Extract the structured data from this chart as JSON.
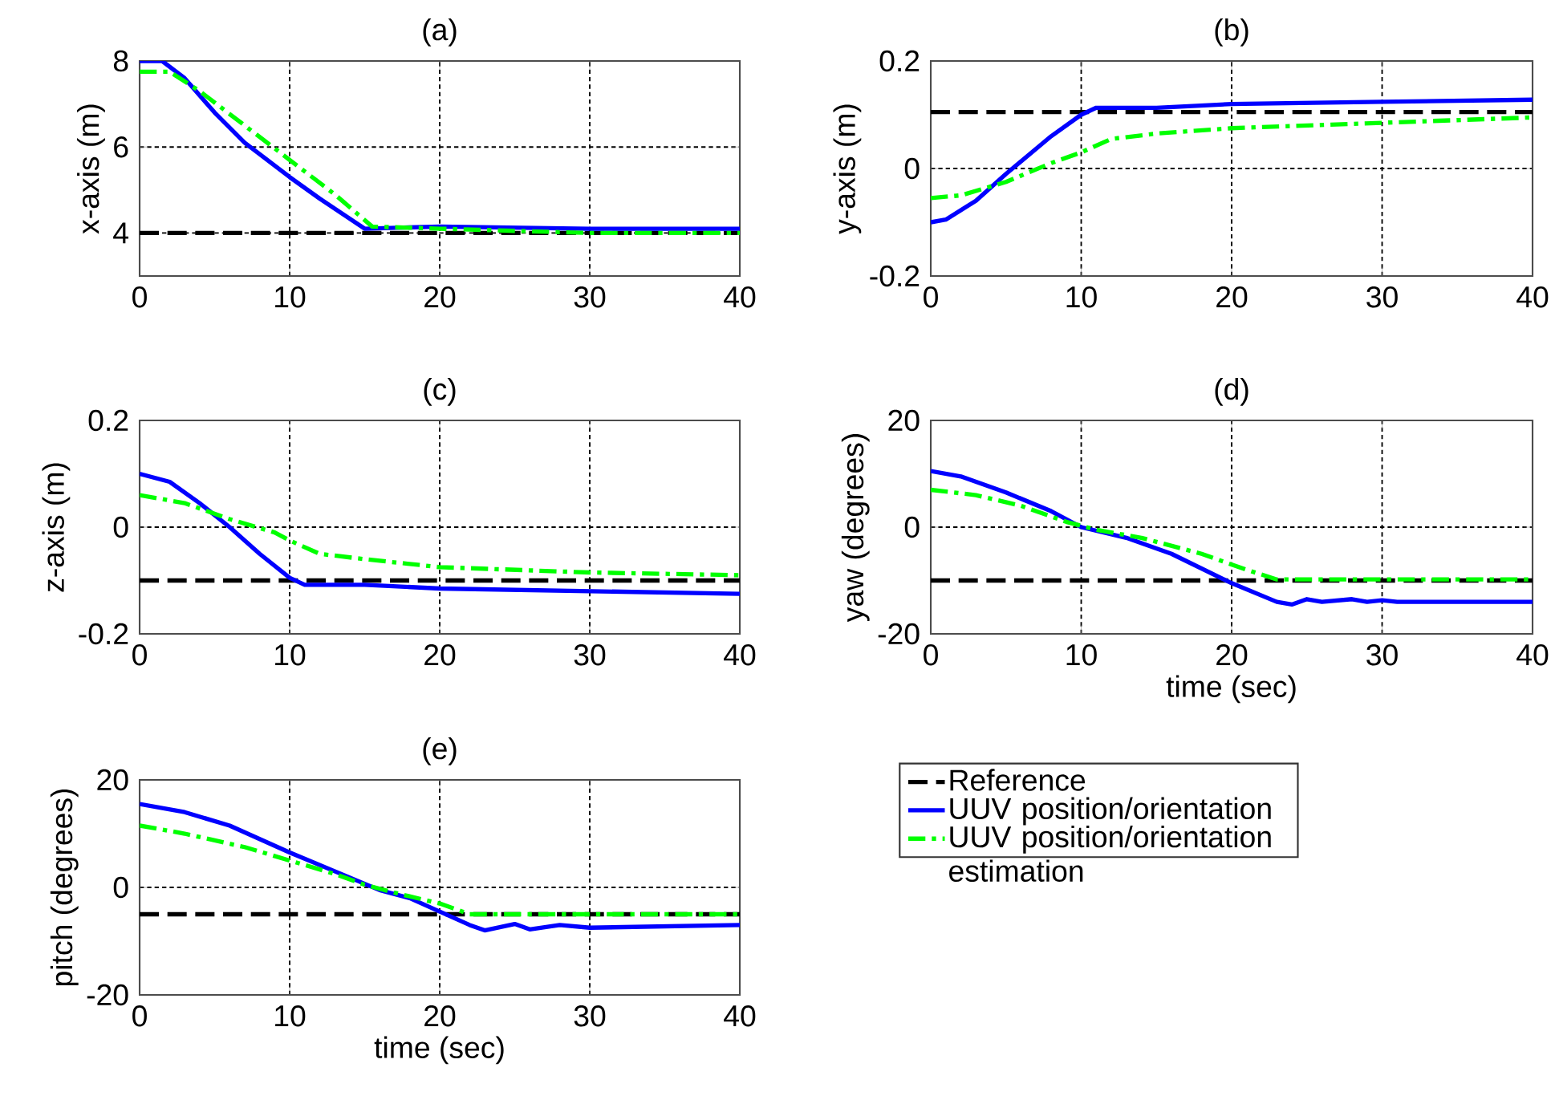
{
  "chart_data": [
    {
      "type": "line",
      "title": "(a)",
      "ylabel": "x-axis (m)",
      "xlim": [
        0,
        40
      ],
      "ylim": [
        3,
        8
      ],
      "xticks": [
        0,
        10,
        20,
        30,
        40
      ],
      "yticks": [
        4,
        6,
        8
      ],
      "grid": true,
      "series": [
        {
          "color": "#000000",
          "line_style": "dashed",
          "x": [
            0,
            40
          ],
          "values": [
            4,
            4
          ]
        },
        {
          "color": "#0000ff",
          "line_style": "solid",
          "x": [
            0,
            1.5,
            3,
            5,
            7,
            10,
            12,
            15,
            20,
            30,
            40
          ],
          "values": [
            8,
            8,
            7.6,
            6.8,
            6.1,
            5.3,
            4.8,
            4.1,
            4.15,
            4.1,
            4.1
          ]
        },
        {
          "color": "#00ff00",
          "line_style": "dashdot",
          "x": [
            0,
            2,
            4,
            7,
            10,
            13,
            15.5,
            20,
            30,
            40
          ],
          "values": [
            7.75,
            7.75,
            7.3,
            6.5,
            5.7,
            4.9,
            4.15,
            4.1,
            4.0,
            4.0
          ]
        }
      ]
    },
    {
      "type": "line",
      "title": "(b)",
      "ylabel": "y-axis (m)",
      "xlim": [
        0,
        40
      ],
      "ylim": [
        -0.2,
        0.2
      ],
      "xticks": [
        0,
        10,
        20,
        30,
        40
      ],
      "yticks": [
        -0.2,
        0,
        0.2
      ],
      "grid": true,
      "series": [
        {
          "color": "#000000",
          "line_style": "dashed",
          "x": [
            0,
            40
          ],
          "values": [
            0.105,
            0.105
          ]
        },
        {
          "color": "#0000ff",
          "line_style": "solid",
          "x": [
            0,
            1,
            3,
            5,
            8,
            10,
            11,
            15,
            20,
            30,
            40
          ],
          "values": [
            -0.1,
            -0.095,
            -0.06,
            -0.01,
            0.06,
            0.1,
            0.113,
            0.113,
            0.12,
            0.124,
            0.128
          ]
        },
        {
          "color": "#00ff00",
          "line_style": "dashdot",
          "x": [
            0,
            2,
            5,
            8,
            10,
            12,
            15,
            20,
            30,
            40
          ],
          "values": [
            -0.055,
            -0.05,
            -0.025,
            0.01,
            0.03,
            0.055,
            0.065,
            0.075,
            0.085,
            0.095
          ]
        }
      ]
    },
    {
      "type": "line",
      "title": "(c)",
      "ylabel": "z-axis (m)",
      "xlim": [
        0,
        40
      ],
      "ylim": [
        -0.2,
        0.2
      ],
      "xticks": [
        0,
        10,
        20,
        30,
        40
      ],
      "yticks": [
        -0.2,
        0,
        0.2
      ],
      "grid": true,
      "series": [
        {
          "color": "#000000",
          "line_style": "dashed",
          "x": [
            0,
            40
          ],
          "values": [
            -0.1,
            -0.1
          ]
        },
        {
          "color": "#0000ff",
          "line_style": "solid",
          "x": [
            0,
            2,
            4,
            6,
            8,
            10,
            11,
            15,
            20,
            30,
            40
          ],
          "values": [
            0.1,
            0.085,
            0.045,
            0,
            -0.05,
            -0.095,
            -0.108,
            -0.108,
            -0.115,
            -0.12,
            -0.125
          ]
        },
        {
          "color": "#00ff00",
          "line_style": "dashdot",
          "x": [
            0,
            3,
            6,
            9,
            10,
            12,
            15,
            20,
            30,
            40
          ],
          "values": [
            0.06,
            0.045,
            0.015,
            -0.01,
            -0.025,
            -0.05,
            -0.06,
            -0.075,
            -0.085,
            -0.09
          ]
        }
      ]
    },
    {
      "type": "line",
      "title": "(d)",
      "ylabel": "yaw (degrees)",
      "xlabel": "time (sec)",
      "xlim": [
        0,
        40
      ],
      "ylim": [
        -20,
        20
      ],
      "xticks": [
        0,
        10,
        20,
        30,
        40
      ],
      "yticks": [
        -20,
        0,
        20
      ],
      "grid": true,
      "series": [
        {
          "color": "#000000",
          "line_style": "dashed",
          "x": [
            0,
            40
          ],
          "values": [
            -10,
            -10
          ]
        },
        {
          "color": "#0000ff",
          "line_style": "solid",
          "x": [
            0,
            2,
            5,
            8,
            10,
            13,
            16,
            20,
            23,
            24,
            25,
            26,
            28,
            29,
            30,
            31,
            40
          ],
          "values": [
            10.5,
            9.5,
            6.5,
            3,
            0,
            -2,
            -5,
            -10.5,
            -14,
            -14.5,
            -13.5,
            -14,
            -13.5,
            -14,
            -13.7,
            -14,
            -14
          ]
        },
        {
          "color": "#00ff00",
          "line_style": "dashdot",
          "x": [
            0,
            3,
            6,
            9,
            11,
            14,
            18,
            21,
            23,
            40
          ],
          "values": [
            7,
            6,
            4,
            1,
            -0.5,
            -2,
            -5,
            -8,
            -9.8,
            -9.8
          ]
        }
      ]
    },
    {
      "type": "line",
      "title": "(e)",
      "ylabel": "pitch (degrees)",
      "xlabel": "time (sec)",
      "xlim": [
        0,
        40
      ],
      "ylim": [
        -20,
        20
      ],
      "xticks": [
        0,
        10,
        20,
        30,
        40
      ],
      "yticks": [
        -20,
        0,
        20
      ],
      "grid": true,
      "legend": "right",
      "series": [
        {
          "name": "Reference",
          "color": "#000000",
          "line_style": "dashed",
          "x": [
            0,
            40
          ],
          "values": [
            -5,
            -5
          ]
        },
        {
          "name": "UUV position/orientation",
          "color": "#0000ff",
          "line_style": "solid",
          "x": [
            0,
            3,
            6,
            10,
            13,
            16,
            18,
            20,
            22,
            23,
            25,
            26,
            28,
            30,
            40
          ],
          "values": [
            15.5,
            14,
            11.5,
            6.5,
            3,
            -0.5,
            -2,
            -4.5,
            -7,
            -8,
            -6.8,
            -7.8,
            -7,
            -7.5,
            -7
          ]
        },
        {
          "name": "UUV position/orientation estimation",
          "color": "#00ff00",
          "line_style": "dashdot",
          "x": [
            0,
            3,
            7,
            10,
            13,
            15,
            17,
            20,
            22,
            40
          ],
          "values": [
            11.5,
            10,
            7.5,
            5,
            2.5,
            0.5,
            -1,
            -3,
            -5,
            -5
          ]
        }
      ]
    }
  ]
}
